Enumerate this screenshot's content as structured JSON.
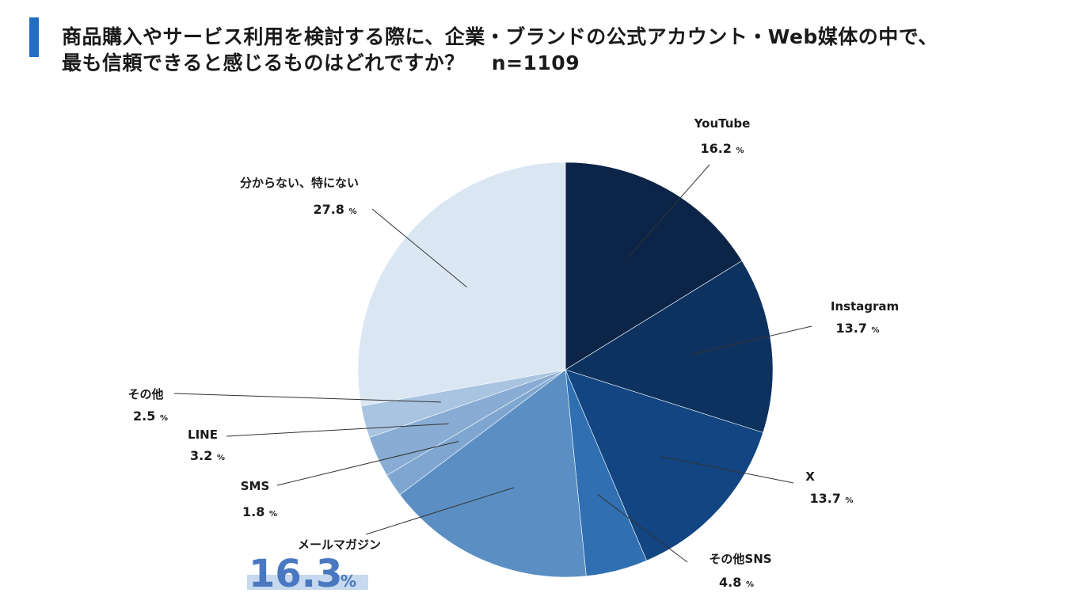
{
  "title": {
    "line1": "商品購入やサービス利用を検討する際に、企業・ブランドの公式アカウント・Web媒体の中で、",
    "line2": "最も信頼できると感じるものはどれですか？",
    "n": "n=1109"
  },
  "chart_data": {
    "type": "pie",
    "unit": "%",
    "slices": [
      {
        "label": "YouTube",
        "value": 16.2,
        "value_text": "16.2",
        "color": "#0b2447"
      },
      {
        "label": "Instagram",
        "value": 13.7,
        "value_text": "13.7",
        "color": "#0e325f"
      },
      {
        "label": "X",
        "value": 13.7,
        "value_text": "13.7",
        "color": "#124581"
      },
      {
        "label": "その他SNS",
        "value": 4.8,
        "value_text": "4.8",
        "color": "#2f6fb2"
      },
      {
        "label": "メールマガジン",
        "value": 16.3,
        "value_text": "16.3",
        "color": "#5b8fc4",
        "highlight": true
      },
      {
        "label": "SMS",
        "value": 1.8,
        "value_text": "1.8",
        "color": "#7ea6d0"
      },
      {
        "label": "LINE",
        "value": 3.2,
        "value_text": "3.2",
        "color": "#88acd4"
      },
      {
        "label": "その他",
        "value": 2.5,
        "value_text": "2.5",
        "color": "#a9c4e1"
      },
      {
        "label": "分からない、特にない",
        "value": 27.8,
        "value_text": "27.8",
        "color": "#dbe6f3"
      }
    ],
    "highlight_color": "#4a78c0",
    "highlight_box_color": "#c7d9ef"
  }
}
